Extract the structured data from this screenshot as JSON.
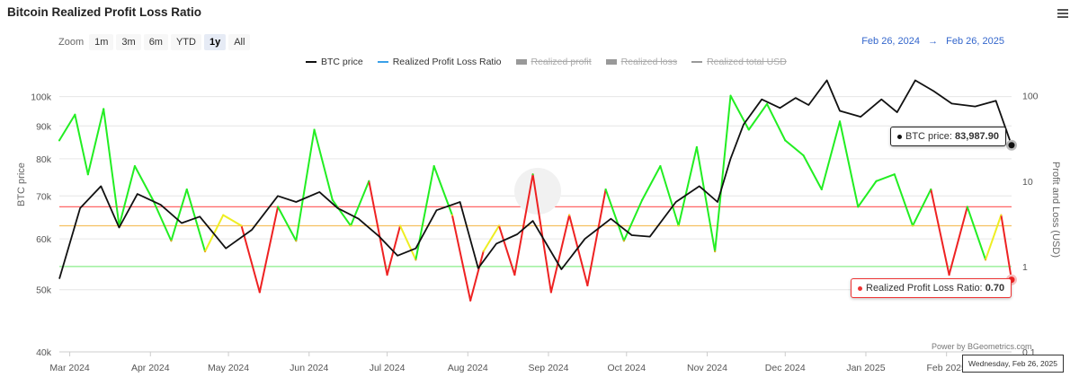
{
  "header": {
    "title": "Bitcoin Realized Profit Loss Ratio"
  },
  "zoom": {
    "label": "Zoom",
    "buttons": [
      "1m",
      "3m",
      "6m",
      "YTD",
      "1y",
      "All"
    ],
    "active": "1y"
  },
  "range": {
    "from": "Feb 26, 2024",
    "arrow": "→",
    "to": "Feb 26, 2025"
  },
  "tooltip": {
    "btc_label": "BTC price:",
    "btc_value": "83,987.90",
    "rpl_label": "Realized Profit Loss Ratio:",
    "rpl_value": "0.70",
    "date": "Wednesday, Feb 26, 2025"
  },
  "credit": "Power by BGeometrics.com",
  "colors": {
    "btc": "#111111",
    "rpl_green": "#22ee22",
    "rpl_yellow": "#eeee22",
    "rpl_orange": "#f5a020",
    "rpl_red": "#ee2222",
    "line_red": "#ff6666",
    "line_orange": "#f5c060",
    "line_green": "#88ee88"
  },
  "chart_data": {
    "type": "line",
    "title": "Bitcoin Realized Profit Loss Ratio",
    "xlabel": "",
    "ylabel_left": "BTC price",
    "ylabel_right": "Profit and Loss (USD)",
    "x_ticks": [
      "Mar 2024",
      "Apr 2024",
      "May 2024",
      "Jun 2024",
      "Jul 2024",
      "Aug 2024",
      "Sep 2024",
      "Oct 2024",
      "Nov 2024",
      "Dec 2024",
      "Jan 2025",
      "Feb 2025"
    ],
    "y_left_ticks": [
      "40k",
      "50k",
      "60k",
      "70k",
      "80k",
      "90k",
      "100k"
    ],
    "y_right_ticks": [
      "0.1",
      "1",
      "10",
      "100"
    ],
    "y_left_scale": "log",
    "y_left_range": [
      40000,
      110000
    ],
    "y_right_scale": "log",
    "y_right_range": [
      0.1,
      200
    ],
    "legend": [
      {
        "name": "BTC price",
        "visible": true
      },
      {
        "name": "Realized Profit Loss Ratio",
        "visible": true
      },
      {
        "name": "Realized profit",
        "visible": false
      },
      {
        "name": "Realized loss",
        "visible": false
      },
      {
        "name": "Realized total USD",
        "visible": false
      }
    ],
    "reference_lines": [
      5,
      3,
      1
    ],
    "series": [
      {
        "name": "BTC price",
        "axis": "left",
        "x": [
          "2024-02-26",
          "2024-03-05",
          "2024-03-13",
          "2024-03-20",
          "2024-03-27",
          "2024-04-05",
          "2024-04-13",
          "2024-04-20",
          "2024-04-30",
          "2024-05-10",
          "2024-05-20",
          "2024-05-27",
          "2024-06-05",
          "2024-06-12",
          "2024-06-20",
          "2024-06-28",
          "2024-07-05",
          "2024-07-12",
          "2024-07-20",
          "2024-07-29",
          "2024-08-05",
          "2024-08-12",
          "2024-08-20",
          "2024-08-26",
          "2024-09-06",
          "2024-09-15",
          "2024-09-25",
          "2024-10-03",
          "2024-10-10",
          "2024-10-20",
          "2024-10-29",
          "2024-11-05",
          "2024-11-10",
          "2024-11-15",
          "2024-11-22",
          "2024-11-29",
          "2024-12-05",
          "2024-12-10",
          "2024-12-17",
          "2024-12-22",
          "2024-12-30",
          "2025-01-07",
          "2025-01-13",
          "2025-01-20",
          "2025-01-27",
          "2025-02-03",
          "2025-02-12",
          "2025-02-20",
          "2025-02-26"
        ],
        "values": [
          52000,
          67000,
          72500,
          62500,
          70500,
          67800,
          63500,
          65000,
          58000,
          62000,
          70000,
          68500,
          71000,
          67000,
          64500,
          60500,
          56500,
          58000,
          66500,
          68500,
          54000,
          59000,
          61000,
          64000,
          53800,
          60000,
          64500,
          60800,
          60500,
          68500,
          72500,
          68500,
          80000,
          90500,
          99000,
          96000,
          99500,
          97000,
          106000,
          95000,
          93000,
          99000,
          94500,
          106000,
          102000,
          97500,
          96500,
          98500,
          83987.9
        ]
      },
      {
        "name": "Realized Profit Loss Ratio",
        "axis": "right",
        "x": [
          "2024-02-26",
          "2024-03-03",
          "2024-03-08",
          "2024-03-14",
          "2024-03-20",
          "2024-03-26",
          "2024-04-02",
          "2024-04-09",
          "2024-04-15",
          "2024-04-22",
          "2024-04-29",
          "2024-05-06",
          "2024-05-13",
          "2024-05-20",
          "2024-05-27",
          "2024-06-03",
          "2024-06-10",
          "2024-06-17",
          "2024-06-24",
          "2024-07-01",
          "2024-07-06",
          "2024-07-12",
          "2024-07-19",
          "2024-07-26",
          "2024-08-02",
          "2024-08-07",
          "2024-08-13",
          "2024-08-19",
          "2024-08-26",
          "2024-09-02",
          "2024-09-09",
          "2024-09-16",
          "2024-09-23",
          "2024-09-30",
          "2024-10-07",
          "2024-10-14",
          "2024-10-21",
          "2024-10-28",
          "2024-11-04",
          "2024-11-10",
          "2024-11-17",
          "2024-11-24",
          "2024-12-01",
          "2024-12-08",
          "2024-12-15",
          "2024-12-22",
          "2024-12-29",
          "2025-01-05",
          "2025-01-12",
          "2025-01-19",
          "2025-01-26",
          "2025-02-02",
          "2025-02-09",
          "2025-02-16",
          "2025-02-22",
          "2025-02-26"
        ],
        "values": [
          30,
          60,
          12,
          70,
          3,
          15,
          6,
          2,
          8,
          1.5,
          4,
          3,
          0.5,
          5,
          2,
          40,
          6,
          3,
          10,
          0.8,
          3,
          1.2,
          15,
          4,
          0.4,
          1.5,
          3,
          0.8,
          12,
          0.5,
          4,
          0.6,
          8,
          2,
          6,
          15,
          3,
          25,
          1.5,
          100,
          40,
          80,
          30,
          20,
          8,
          50,
          5,
          10,
          12,
          3,
          8,
          0.8,
          5,
          1.2,
          4,
          0.7
        ]
      }
    ]
  }
}
